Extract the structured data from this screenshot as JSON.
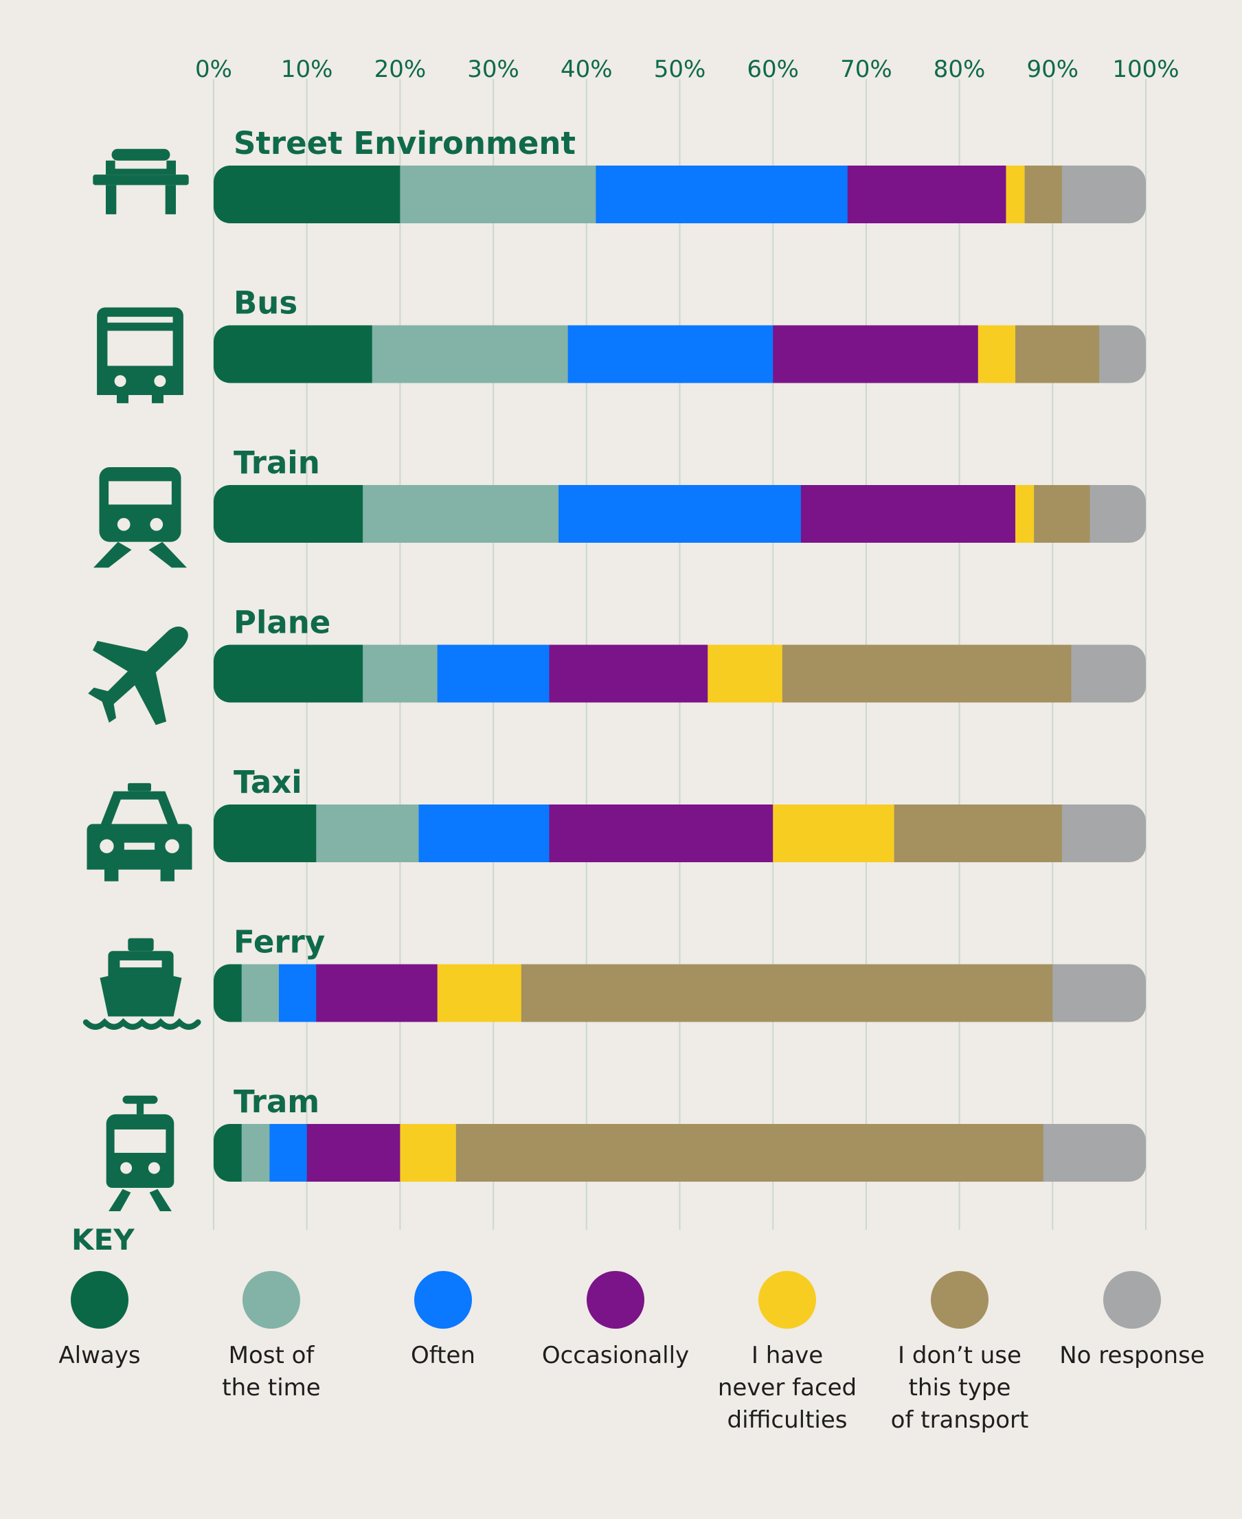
{
  "key_title": "KEY",
  "chart_data": {
    "type": "bar",
    "orientation": "horizontal",
    "stacked": true,
    "title": "",
    "xlabel": "",
    "ylabel": "",
    "xlim": [
      0,
      100
    ],
    "x_ticks": [
      "0%",
      "10%",
      "20%",
      "30%",
      "40%",
      "50%",
      "60%",
      "70%",
      "80%",
      "90%",
      "100%"
    ],
    "grid": "vertical",
    "categories": [
      "Street Environment",
      "Bus",
      "Train",
      "Plane",
      "Taxi",
      "Ferry",
      "Tram"
    ],
    "category_icons": [
      "bench-icon",
      "bus-icon",
      "train-icon",
      "plane-icon",
      "taxi-icon",
      "ferry-icon",
      "tram-icon"
    ],
    "series": [
      {
        "name": "Always",
        "color": "#0a6847",
        "values": [
          20,
          17,
          16,
          16,
          11,
          3,
          3
        ]
      },
      {
        "name": "Most of the time",
        "color": "#82b3a6",
        "values": [
          21,
          21,
          21,
          8,
          11,
          4,
          3
        ]
      },
      {
        "name": "Often",
        "color": "#0a78ff",
        "values": [
          27,
          22,
          26,
          12,
          14,
          4,
          4
        ]
      },
      {
        "name": "Occasionally",
        "color": "#7a1488",
        "values": [
          17,
          22,
          23,
          17,
          24,
          13,
          10
        ]
      },
      {
        "name": "I have never faced difficulties",
        "color": "#f7cd22",
        "values": [
          2,
          4,
          2,
          8,
          13,
          9,
          6
        ]
      },
      {
        "name": "I don’t use this type of transport",
        "color": "#a4915f",
        "values": [
          4,
          9,
          6,
          31,
          18,
          57,
          63
        ]
      },
      {
        "name": "No response",
        "color": "#a5a7a8",
        "values": [
          9,
          5,
          6,
          8,
          9,
          10,
          11
        ]
      }
    ],
    "legend_position": "bottom"
  },
  "legend": {
    "items": [
      {
        "label": "Always",
        "color": "#0a6847"
      },
      {
        "label": "Most of\nthe time",
        "color": "#82b3a6"
      },
      {
        "label": "Often",
        "color": "#0a78ff"
      },
      {
        "label": "Occasionally",
        "color": "#7a1488"
      },
      {
        "label": "I have\nnever faced\ndifficulties",
        "color": "#f7cd22"
      },
      {
        "label": "I don’t use\nthis type\nof transport",
        "color": "#a4915f"
      },
      {
        "label": "No response",
        "color": "#a5a7a8"
      }
    ]
  }
}
